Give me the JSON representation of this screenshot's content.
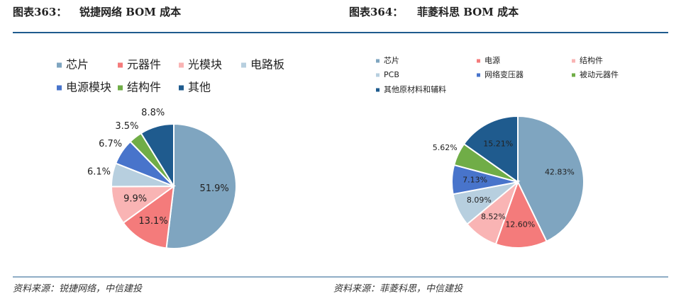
{
  "chart_data": [
    {
      "type": "pie",
      "figure_label": "图表363：",
      "title": "锐捷网络 BOM 成本",
      "categories": [
        "芯片",
        "元器件",
        "光模块",
        "电路板",
        "电源模块",
        "结构件",
        "其他"
      ],
      "values": [
        51.9,
        13.1,
        9.9,
        6.1,
        6.7,
        3.5,
        8.8
      ],
      "value_labels": [
        "51.9%",
        "13.1%",
        "9.9%",
        "6.1%",
        "6.7%",
        "3.5%",
        "8.8%"
      ],
      "colors": [
        "#7fa5c0",
        "#f47b7b",
        "#f9b4b4",
        "#b7cfdf",
        "#4874cb",
        "#70ad47",
        "#1f5b8e"
      ],
      "source": "资料来源：锐捷网络，中信建投"
    },
    {
      "type": "pie",
      "figure_label": "图表364：",
      "title": "菲菱科思 BOM 成本",
      "categories": [
        "芯片",
        "电源",
        "结构件",
        "PCB",
        "网络变压器",
        "被动元器件",
        "其他原材料和辅料"
      ],
      "values": [
        42.83,
        12.6,
        8.52,
        8.09,
        7.13,
        5.62,
        15.21
      ],
      "value_labels": [
        "42.83%",
        "12.60%",
        "8.52%",
        "8.09%",
        "7.13%",
        "5.62%",
        "15.21%"
      ],
      "colors": [
        "#7fa5c0",
        "#f47b7b",
        "#f9b4b4",
        "#b7cfdf",
        "#4874cb",
        "#70ad47",
        "#1f5b8e"
      ],
      "source": "资料来源：菲菱科思，中信建投"
    }
  ]
}
